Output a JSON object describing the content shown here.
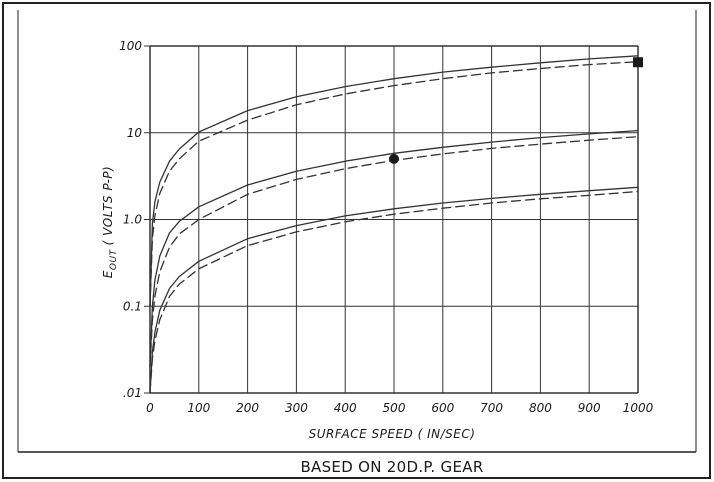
{
  "chart_data": {
    "type": "line",
    "title": "",
    "caption": "BASED ON 20D.P. GEAR",
    "xlabel": "SURFACE SPEED ( IN/SEC)",
    "ylabel": "E_OUT ( VOLTS P-P)",
    "ylabel_main": "E",
    "ylabel_sub": "OUT",
    "ylabel_rest": "( VOLTS P-P)",
    "x_scale": "linear",
    "y_scale": "log",
    "xlim": [
      0,
      1000
    ],
    "ylim": [
      0.01,
      100
    ],
    "x_ticks": [
      0,
      100,
      200,
      300,
      400,
      500,
      600,
      700,
      800,
      900,
      1000
    ],
    "x_tick_labels": [
      "0",
      "100",
      "200",
      "300",
      "400",
      "500",
      "600",
      "700",
      "800",
      "900",
      "1000"
    ],
    "y_ticks": [
      0.01,
      0.1,
      1.0,
      10,
      100
    ],
    "y_tick_labels": [
      ".01",
      "0.1",
      "1.0",
      "10",
      "100"
    ],
    "grid": true,
    "legend": "none",
    "series": [
      {
        "style": "solid",
        "x": [
          0,
          5,
          10,
          20,
          40,
          60,
          100,
          200,
          300,
          400,
          500,
          600,
          700,
          800,
          900,
          1000
        ],
        "y": [
          0.1,
          0.9,
          1.6,
          2.7,
          4.7,
          6.5,
          10.2,
          18,
          26,
          34,
          42,
          50,
          57,
          64,
          71,
          77
        ]
      },
      {
        "style": "dashed",
        "x": [
          0,
          5,
          10,
          20,
          40,
          60,
          100,
          200,
          300,
          400,
          500,
          600,
          700,
          800,
          900,
          1000
        ],
        "y": [
          0.1,
          0.6,
          1.1,
          2.0,
          3.6,
          5.0,
          8.0,
          14,
          21,
          28,
          35,
          42,
          49,
          55,
          61,
          66
        ]
      },
      {
        "style": "solid",
        "x": [
          0,
          5,
          10,
          20,
          40,
          60,
          100,
          200,
          300,
          400,
          500,
          600,
          700,
          800,
          900,
          1000
        ],
        "y": [
          0.02,
          0.1,
          0.2,
          0.38,
          0.7,
          0.95,
          1.4,
          2.5,
          3.6,
          4.7,
          5.8,
          6.8,
          7.8,
          8.8,
          9.7,
          10.6
        ]
      },
      {
        "style": "dashed",
        "x": [
          0,
          5,
          10,
          20,
          40,
          60,
          100,
          200,
          300,
          400,
          500,
          600,
          700,
          800,
          900,
          1000
        ],
        "y": [
          0.02,
          0.07,
          0.13,
          0.25,
          0.48,
          0.68,
          1.0,
          1.95,
          2.9,
          3.85,
          4.8,
          5.7,
          6.6,
          7.4,
          8.2,
          9.0
        ]
      },
      {
        "style": "solid",
        "x": [
          0,
          5,
          10,
          20,
          40,
          60,
          100,
          200,
          300,
          400,
          500,
          600,
          700,
          800,
          900,
          1000
        ],
        "y": [
          0.01,
          0.03,
          0.05,
          0.09,
          0.16,
          0.22,
          0.33,
          0.6,
          0.85,
          1.1,
          1.33,
          1.55,
          1.75,
          1.95,
          2.15,
          2.35
        ]
      },
      {
        "style": "dashed",
        "x": [
          0,
          5,
          10,
          20,
          40,
          60,
          100,
          200,
          300,
          400,
          500,
          600,
          700,
          800,
          900,
          1000
        ],
        "y": [
          0.01,
          0.025,
          0.04,
          0.07,
          0.13,
          0.18,
          0.27,
          0.5,
          0.72,
          0.94,
          1.15,
          1.35,
          1.55,
          1.73,
          1.9,
          2.1
        ]
      }
    ],
    "markers": [
      {
        "shape": "circle",
        "x": 500,
        "y": 5
      },
      {
        "shape": "square",
        "x": 1000,
        "y": 65
      }
    ]
  }
}
